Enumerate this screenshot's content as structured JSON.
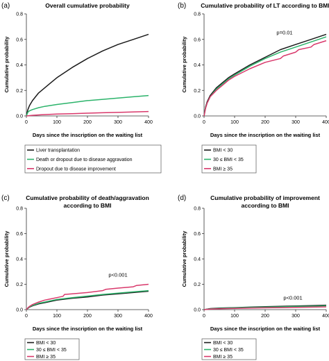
{
  "chart_data": [
    {
      "panel": "(a)",
      "type": "line",
      "title": "Overall cumulative probability",
      "xlabel": "Days since the inscription on the waiting list",
      "ylabel": "Cumulative probability",
      "xlim": [
        0,
        400
      ],
      "ylim": [
        0,
        0.8
      ],
      "xticks": [
        0,
        100,
        200,
        300,
        400
      ],
      "yticks": [
        0.0,
        0.2,
        0.4,
        0.6,
        0.8
      ],
      "legend_placement": "below",
      "annotation": "",
      "series": [
        {
          "name": "Liver transplantation",
          "color": "#1a1a1a",
          "x": [
            0,
            5,
            10,
            20,
            40,
            60,
            80,
            100,
            150,
            200,
            250,
            300,
            350,
            400
          ],
          "y": [
            0,
            0.05,
            0.08,
            0.12,
            0.18,
            0.22,
            0.26,
            0.3,
            0.38,
            0.45,
            0.51,
            0.56,
            0.6,
            0.64
          ]
        },
        {
          "name": "Death or dropout due to disease aggravation",
          "color": "#2bb36a",
          "x": [
            0,
            5,
            10,
            20,
            40,
            60,
            80,
            100,
            150,
            200,
            250,
            300,
            350,
            400
          ],
          "y": [
            0,
            0.03,
            0.04,
            0.05,
            0.065,
            0.075,
            0.082,
            0.09,
            0.105,
            0.12,
            0.13,
            0.14,
            0.15,
            0.16
          ]
        },
        {
          "name": "Dropout due to disease improvement",
          "color": "#d9386b",
          "x": [
            0,
            20,
            50,
            100,
            150,
            200,
            250,
            300,
            350,
            400
          ],
          "y": [
            0,
            0.005,
            0.01,
            0.015,
            0.018,
            0.022,
            0.025,
            0.028,
            0.031,
            0.035
          ]
        }
      ]
    },
    {
      "panel": "(b)",
      "type": "line",
      "title": "Cumulative probability of LT according to BMI",
      "xlabel": "Days since the inscription on the waiting list",
      "ylabel": "Cumulative probability",
      "xlim": [
        0,
        400
      ],
      "ylim": [
        0,
        0.8
      ],
      "xticks": [
        0,
        100,
        200,
        300,
        400
      ],
      "yticks": [
        0.0,
        0.2,
        0.4,
        0.6,
        0.8
      ],
      "legend_placement": "below",
      "annotation": "p=0.01",
      "series": [
        {
          "name": "BMI < 30",
          "color": "#1a1a1a",
          "x": [
            0,
            5,
            10,
            20,
            40,
            60,
            80,
            100,
            150,
            200,
            250,
            300,
            350,
            400
          ],
          "y": [
            0,
            0.07,
            0.11,
            0.16,
            0.22,
            0.26,
            0.3,
            0.33,
            0.4,
            0.46,
            0.52,
            0.56,
            0.6,
            0.64
          ]
        },
        {
          "name": "30 ≤ BMI < 35",
          "color": "#2bb36a",
          "x": [
            0,
            5,
            10,
            20,
            40,
            60,
            80,
            100,
            150,
            200,
            250,
            300,
            350,
            400
          ],
          "y": [
            0,
            0.065,
            0.1,
            0.15,
            0.21,
            0.25,
            0.29,
            0.32,
            0.39,
            0.45,
            0.5,
            0.54,
            0.58,
            0.62
          ]
        },
        {
          "name": "BMI ≥ 35",
          "color": "#d9386b",
          "x": [
            0,
            5,
            10,
            20,
            40,
            60,
            80,
            100,
            150,
            200,
            250,
            260,
            300,
            310,
            350,
            360,
            400
          ],
          "y": [
            0,
            0.06,
            0.1,
            0.15,
            0.2,
            0.24,
            0.28,
            0.31,
            0.37,
            0.42,
            0.45,
            0.47,
            0.5,
            0.52,
            0.54,
            0.56,
            0.59
          ]
        }
      ]
    },
    {
      "panel": "(c)",
      "type": "line",
      "title": "Cumulative probability of death/aggravation according to BMI",
      "title_lines": [
        "Cumulative probability of death/aggravation",
        "according to BMI"
      ],
      "xlabel": "Days since the inscription on the waiting list",
      "ylabel": "Cumulative probability",
      "xlim": [
        0,
        400
      ],
      "ylim": [
        0,
        0.8
      ],
      "xticks": [
        0,
        100,
        200,
        300,
        400
      ],
      "yticks": [
        0.0,
        0.2,
        0.4,
        0.6,
        0.8
      ],
      "legend_placement": "below",
      "annotation": "p<0.001",
      "series": [
        {
          "name": "BMI < 30",
          "color": "#1a1a1a",
          "x": [
            0,
            5,
            10,
            20,
            40,
            60,
            80,
            100,
            150,
            200,
            250,
            300,
            350,
            400
          ],
          "y": [
            0,
            0.01,
            0.02,
            0.03,
            0.045,
            0.055,
            0.065,
            0.075,
            0.09,
            0.1,
            0.115,
            0.125,
            0.135,
            0.145
          ]
        },
        {
          "name": "30 ≤ BMI < 35",
          "color": "#2bb36a",
          "x": [
            0,
            5,
            10,
            20,
            40,
            60,
            80,
            100,
            150,
            200,
            250,
            300,
            350,
            400
          ],
          "y": [
            0,
            0.012,
            0.022,
            0.033,
            0.05,
            0.06,
            0.07,
            0.08,
            0.095,
            0.107,
            0.12,
            0.13,
            0.14,
            0.15
          ]
        },
        {
          "name": "BMI ≥ 35",
          "color": "#d9386b",
          "x": [
            0,
            5,
            10,
            20,
            40,
            60,
            80,
            100,
            120,
            125,
            150,
            200,
            250,
            260,
            300,
            350,
            360,
            400
          ],
          "y": [
            0,
            0.015,
            0.025,
            0.04,
            0.06,
            0.075,
            0.085,
            0.095,
            0.105,
            0.12,
            0.125,
            0.135,
            0.15,
            0.16,
            0.17,
            0.18,
            0.19,
            0.2
          ]
        }
      ]
    },
    {
      "panel": "(d)",
      "type": "line",
      "title": "Cumulative probability of improvement according to BMI",
      "title_lines": [
        "Cumulative probability of improvement",
        "according to BMI"
      ],
      "xlabel": "Days since the inscription on the waiting list",
      "ylabel": "Cumulative probability",
      "xlim": [
        0,
        400
      ],
      "ylim": [
        0,
        0.8
      ],
      "xticks": [
        0,
        100,
        200,
        300,
        400
      ],
      "yticks": [
        0.0,
        0.2,
        0.4,
        0.6,
        0.8
      ],
      "legend_placement": "below",
      "annotation": "p<0.001",
      "series": [
        {
          "name": "BMI < 30",
          "color": "#1a1a1a",
          "x": [
            0,
            20,
            50,
            100,
            150,
            200,
            250,
            300,
            350,
            400
          ],
          "y": [
            0,
            0.008,
            0.012,
            0.016,
            0.02,
            0.023,
            0.026,
            0.029,
            0.032,
            0.035
          ]
        },
        {
          "name": "30 ≤ BMI < 35",
          "color": "#2bb36a",
          "x": [
            0,
            20,
            50,
            100,
            150,
            200,
            250,
            300,
            350,
            400
          ],
          "y": [
            0,
            0.006,
            0.01,
            0.014,
            0.017,
            0.02,
            0.022,
            0.025,
            0.027,
            0.03
          ]
        },
        {
          "name": "BMI ≥ 35",
          "color": "#d9386b",
          "x": [
            0,
            20,
            50,
            100,
            150,
            200,
            250,
            300,
            350,
            400
          ],
          "y": [
            0,
            0.004,
            0.007,
            0.01,
            0.012,
            0.014,
            0.016,
            0.018,
            0.02,
            0.022
          ]
        }
      ]
    }
  ]
}
